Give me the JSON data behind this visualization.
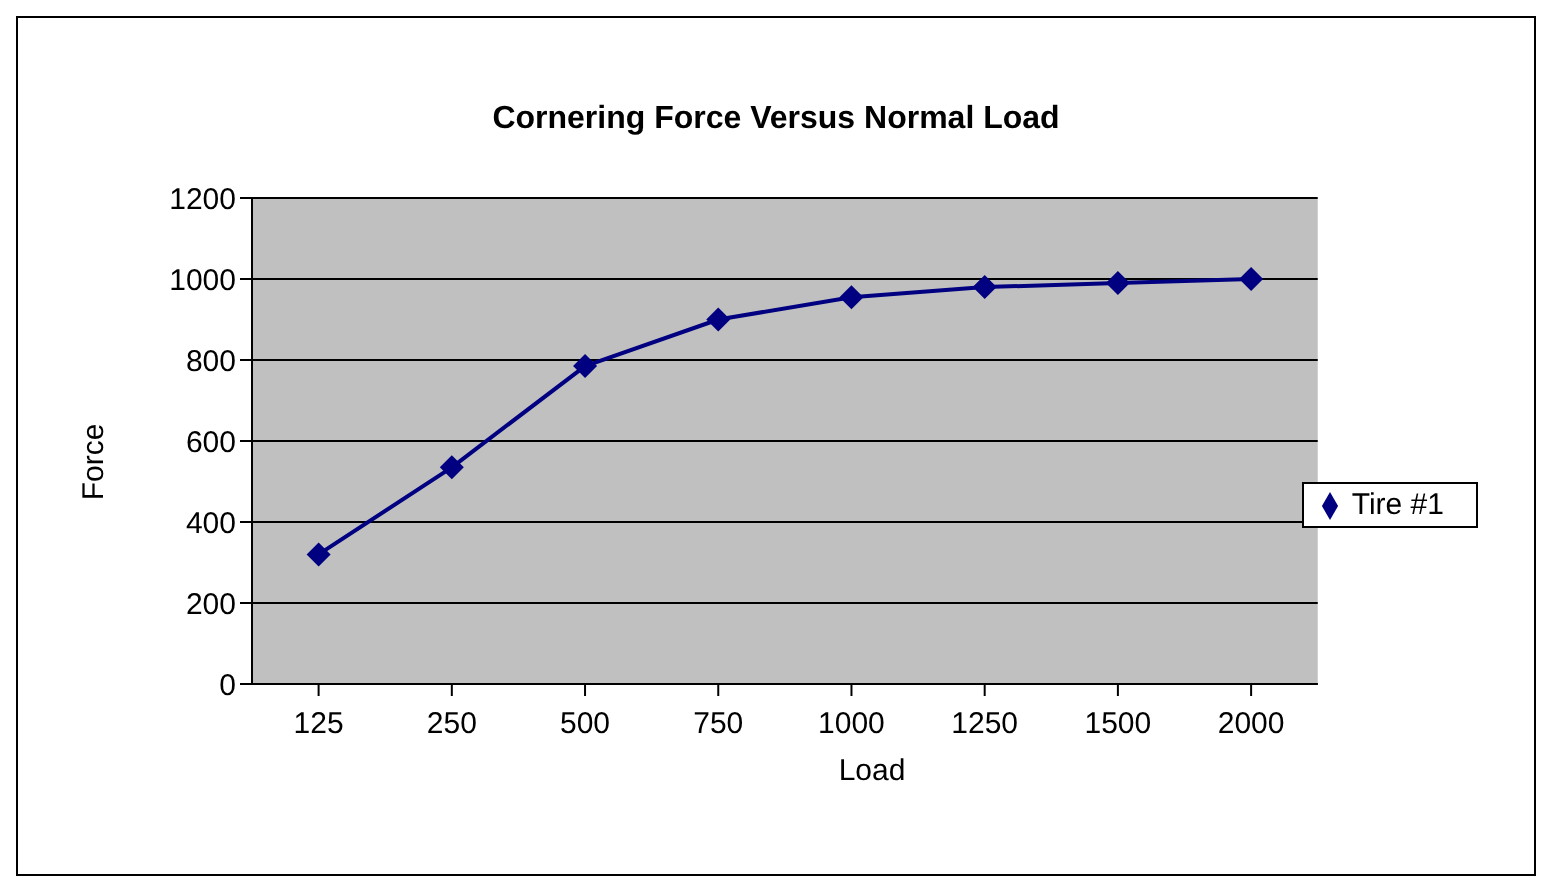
{
  "chart_data": {
    "type": "line",
    "title": "Cornering Force Versus Normal Load",
    "xlabel": "Load",
    "ylabel": "Force",
    "categories": [
      "125",
      "250",
      "500",
      "750",
      "1000",
      "1250",
      "1500",
      "2000"
    ],
    "series": [
      {
        "name": "Tire #1",
        "color": "#000080",
        "values": [
          320,
          535,
          785,
          900,
          955,
          980,
          990,
          1000
        ]
      }
    ],
    "ylim": [
      0,
      1200
    ],
    "yticks": [
      0,
      200,
      400,
      600,
      800,
      1000,
      1200
    ],
    "grid": "y",
    "legend": "right",
    "marker": "diamond",
    "line_style": "solid"
  }
}
